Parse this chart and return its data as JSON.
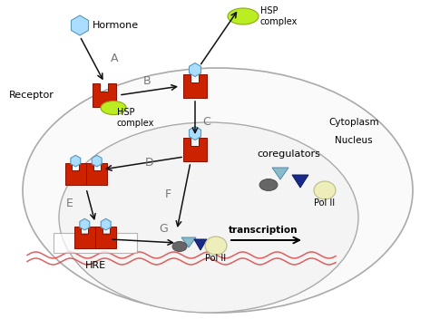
{
  "bg_color": "#ffffff",
  "receptor_color": "#cc2200",
  "hormone_color": "#aaddff",
  "hsp_color": "#bbee22",
  "dna_color": "#dd4444",
  "cor_tri_color": "#88bbcc",
  "cor_dark_color": "#666666",
  "cor_navy_color": "#1a2a88",
  "polII_color": "#eeeebb",
  "arrow_color": "#111111",
  "label_color": "#777777",
  "nucleus_fill": "#f4f4f4",
  "nucleus_edge": "#aaaaaa",
  "cytoplasm_fill": "#fafafa",
  "cytoplasm_edge": "#aaaaaa",
  "labels": {
    "hormone": "Hormone",
    "hsp_top": "HSP\ncomplex",
    "hsp_left": "HSP\ncomplex",
    "receptor": "Receptor",
    "A": "A",
    "B": "B",
    "C": "C",
    "D": "D",
    "E": "E",
    "F": "F",
    "G": "G",
    "coregulators": "coregulators",
    "nucleus": "Nucleus",
    "cytoplasm": "Cytoplasm",
    "hre": "HRE",
    "polII_leg": "Pol II",
    "polII_bot": "Pol II",
    "transcription": "transcription"
  },
  "figsize": [
    4.74,
    3.52
  ],
  "dpi": 100
}
